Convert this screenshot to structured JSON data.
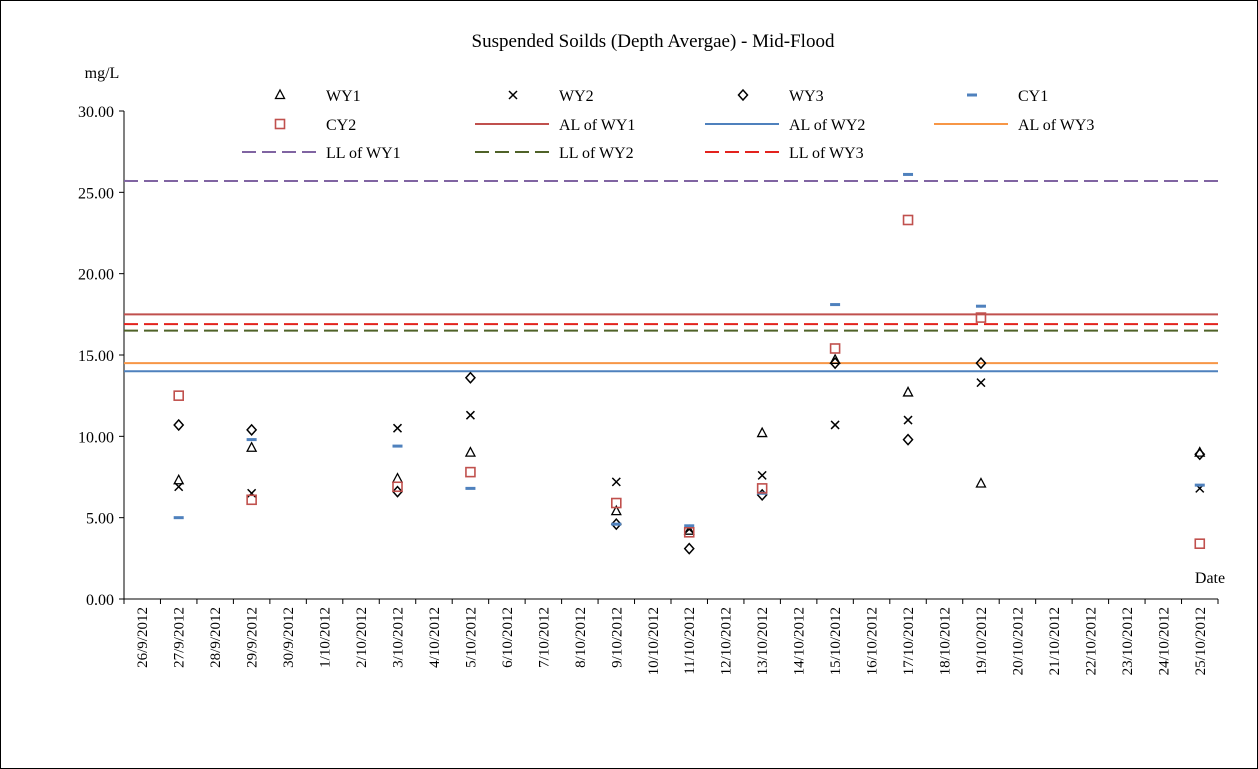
{
  "chart_data": {
    "type": "scatter",
    "title": "Suspended Soilds (Depth Avergae) - Mid-Flood",
    "ylabel": "mg/L",
    "xlabel": "Date",
    "ylim": [
      0,
      30
    ],
    "y_ticks": [
      "0.00",
      "5.00",
      "10.00",
      "15.00",
      "20.00",
      "25.00",
      "30.00"
    ],
    "categories": [
      "26/9/2012",
      "27/9/2012",
      "28/9/2012",
      "29/9/2012",
      "30/9/2012",
      "1/10/2012",
      "2/10/2012",
      "3/10/2012",
      "4/10/2012",
      "5/10/2012",
      "6/10/2012",
      "7/10/2012",
      "8/10/2012",
      "9/10/2012",
      "10/10/2012",
      "11/10/2012",
      "12/10/2012",
      "13/10/2012",
      "14/10/2012",
      "15/10/2012",
      "16/10/2012",
      "17/10/2012",
      "18/10/2012",
      "19/10/2012",
      "20/10/2012",
      "21/10/2012",
      "22/10/2012",
      "23/10/2012",
      "24/10/2012",
      "25/10/2012"
    ],
    "legend_position": "top",
    "grid": false,
    "series": [
      {
        "name": "WY1",
        "marker": "triangle",
        "color": "#000000",
        "points": [
          [
            "27/9/2012",
            7.3
          ],
          [
            "29/9/2012",
            9.3
          ],
          [
            "3/10/2012",
            7.4
          ],
          [
            "5/10/2012",
            9.0
          ],
          [
            "9/10/2012",
            5.4
          ],
          [
            "11/10/2012",
            4.2
          ],
          [
            "13/10/2012",
            10.2
          ],
          [
            "15/10/2012",
            14.7
          ],
          [
            "17/10/2012",
            12.7
          ],
          [
            "19/10/2012",
            7.1
          ],
          [
            "25/10/2012",
            9.0
          ]
        ]
      },
      {
        "name": "WY2",
        "marker": "x",
        "color": "#000000",
        "points": [
          [
            "27/9/2012",
            6.9
          ],
          [
            "29/9/2012",
            6.5
          ],
          [
            "3/10/2012",
            10.5
          ],
          [
            "5/10/2012",
            11.3
          ],
          [
            "9/10/2012",
            7.2
          ],
          [
            "11/10/2012",
            4.3
          ],
          [
            "13/10/2012",
            7.6
          ],
          [
            "15/10/2012",
            10.7
          ],
          [
            "17/10/2012",
            11.0
          ],
          [
            "19/10/2012",
            13.3
          ],
          [
            "25/10/2012",
            6.8
          ]
        ]
      },
      {
        "name": "WY3",
        "marker": "diamond",
        "color": "#000000",
        "points": [
          [
            "27/9/2012",
            10.7
          ],
          [
            "29/9/2012",
            10.4
          ],
          [
            "3/10/2012",
            6.6
          ],
          [
            "5/10/2012",
            13.6
          ],
          [
            "9/10/2012",
            4.6
          ],
          [
            "11/10/2012",
            3.1
          ],
          [
            "13/10/2012",
            6.4
          ],
          [
            "15/10/2012",
            14.5
          ],
          [
            "17/10/2012",
            9.8
          ],
          [
            "19/10/2012",
            14.5
          ],
          [
            "25/10/2012",
            8.9
          ]
        ]
      },
      {
        "name": "CY1",
        "marker": "dash",
        "color": "#4f81bd",
        "points": [
          [
            "27/9/2012",
            5.0
          ],
          [
            "29/9/2012",
            9.8
          ],
          [
            "3/10/2012",
            9.4
          ],
          [
            "5/10/2012",
            6.8
          ],
          [
            "9/10/2012",
            4.6
          ],
          [
            "11/10/2012",
            4.5
          ],
          [
            "13/10/2012",
            6.5
          ],
          [
            "15/10/2012",
            18.1
          ],
          [
            "17/10/2012",
            26.1
          ],
          [
            "19/10/2012",
            18.0
          ],
          [
            "25/10/2012",
            7.0
          ]
        ]
      },
      {
        "name": "CY2",
        "marker": "square",
        "color": "#c0504d",
        "points": [
          [
            "27/9/2012",
            12.5
          ],
          [
            "29/9/2012",
            6.1
          ],
          [
            "3/10/2012",
            6.9
          ],
          [
            "5/10/2012",
            7.8
          ],
          [
            "9/10/2012",
            5.9
          ],
          [
            "11/10/2012",
            4.1
          ],
          [
            "13/10/2012",
            6.8
          ],
          [
            "15/10/2012",
            15.4
          ],
          [
            "17/10/2012",
            23.3
          ],
          [
            "19/10/2012",
            17.3
          ],
          [
            "25/10/2012",
            3.4
          ]
        ]
      }
    ],
    "reference_lines": [
      {
        "name": "AL of WY1",
        "value": 17.5,
        "color": "#c0504d",
        "style": "solid"
      },
      {
        "name": "AL of WY2",
        "value": 14.0,
        "color": "#4f81bd",
        "style": "solid"
      },
      {
        "name": "AL of WY3",
        "value": 14.5,
        "color": "#f79646",
        "style": "solid"
      },
      {
        "name": "LL of WY1",
        "value": 25.7,
        "color": "#8064a2",
        "style": "dashed"
      },
      {
        "name": "LL of WY2",
        "value": 16.5,
        "color": "#4f6228",
        "style": "dashed"
      },
      {
        "name": "LL of WY3",
        "value": 16.9,
        "color": "#e3221d",
        "style": "dashed"
      }
    ]
  }
}
